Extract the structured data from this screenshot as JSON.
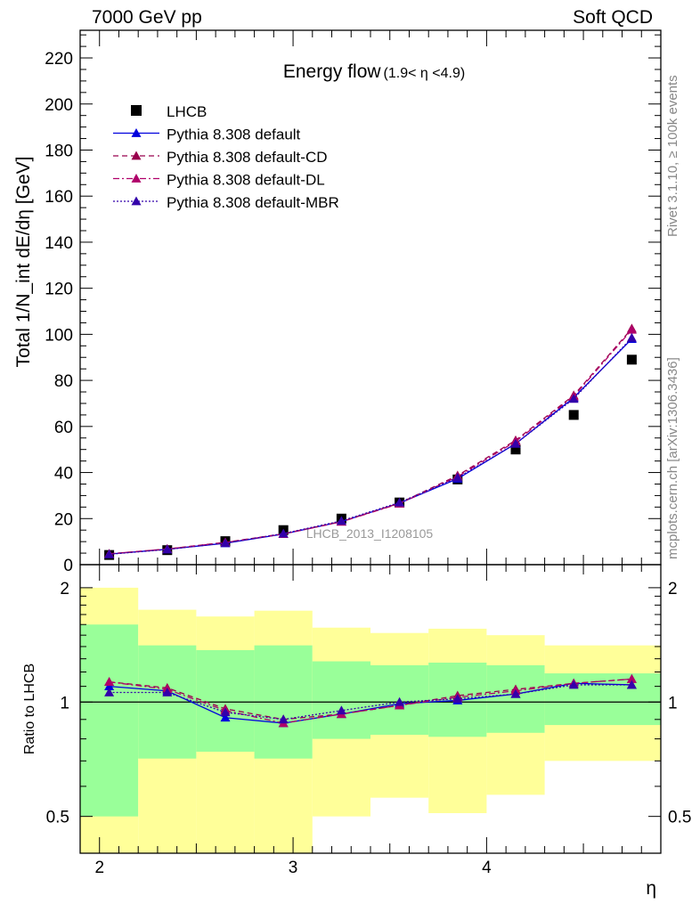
{
  "header": {
    "left": "7000 GeV pp",
    "right": "Soft QCD"
  },
  "side_labels": {
    "rivet": "Rivet 3.1.10, ≥ 100k events",
    "mcplots": "mcplots.cern.ch [arXiv:1306.3436]"
  },
  "chart_data": [
    {
      "type": "scatter",
      "title": "Energy flow",
      "title_suffix": "(1.9< η <4.9)",
      "ylabel": "Total 1/N_int dE/dη [GeV]",
      "xlabel": "η",
      "xlim": [
        1.9,
        4.9
      ],
      "ylim": [
        0,
        232
      ],
      "yticks": [
        0,
        20,
        40,
        60,
        80,
        100,
        120,
        140,
        160,
        180,
        200,
        220
      ],
      "watermark": "LHCB_2013_I1208105",
      "legend_position": "top-left",
      "x": [
        2.05,
        2.35,
        2.65,
        2.95,
        3.25,
        3.55,
        3.85,
        4.15,
        4.45,
        4.75
      ],
      "series": [
        {
          "name": "LHCB",
          "marker": "square",
          "color": "#000000",
          "values": [
            4.2,
            6.3,
            10.2,
            15.0,
            20.0,
            27.0,
            37.0,
            50.0,
            65.0,
            89.0
          ]
        },
        {
          "name": "Pythia 8.308 default",
          "marker": "triangle",
          "line": "solid",
          "color": "#0000dd",
          "values": [
            4.6,
            6.7,
            9.3,
            13.3,
            18.7,
            26.7,
            37.3,
            52.5,
            72.5,
            98.0
          ]
        },
        {
          "name": "Pythia 8.308 default-CD",
          "marker": "triangle",
          "line": "dashed",
          "color": "#99004d",
          "values": [
            4.7,
            6.8,
            9.7,
            13.4,
            18.7,
            26.7,
            38.7,
            54.0,
            73.5,
            102.5
          ]
        },
        {
          "name": "Pythia 8.308 default-DL",
          "marker": "triangle",
          "line": "dashdot",
          "color": "#b0006a",
          "values": [
            4.7,
            6.8,
            9.6,
            13.3,
            18.6,
            26.5,
            38.2,
            53.5,
            73.0,
            102.0
          ]
        },
        {
          "name": "Pythia 8.308 default-MBR",
          "marker": "triangle",
          "line": "dotted",
          "color": "#3300aa",
          "values": [
            4.5,
            6.6,
            9.4,
            13.5,
            19.0,
            27.0,
            37.8,
            52.5,
            72.0,
            98.5
          ]
        }
      ]
    },
    {
      "type": "scatter",
      "ylabel": "Ratio to LHCB",
      "xlabel": "η",
      "xlim": [
        1.9,
        4.9
      ],
      "ylim": [
        0.4,
        2.3
      ],
      "yscale": "log",
      "yticks": [
        0.5,
        1,
        2
      ],
      "xticks": [
        2,
        3,
        4
      ],
      "reference_line": 1,
      "bands": [
        {
          "x_low": 1.9,
          "x_high": 2.2,
          "inner": [
            0.5,
            1.6
          ],
          "outer": [
            0.3,
            2.0
          ]
        },
        {
          "x_low": 2.2,
          "x_high": 2.5,
          "inner": [
            0.71,
            1.41
          ],
          "outer": [
            0.3,
            1.75
          ]
        },
        {
          "x_low": 2.5,
          "x_high": 2.8,
          "inner": [
            0.74,
            1.37
          ],
          "outer": [
            0.3,
            1.68
          ]
        },
        {
          "x_low": 2.8,
          "x_high": 3.1,
          "inner": [
            0.71,
            1.41
          ],
          "outer": [
            0.3,
            1.74
          ]
        },
        {
          "x_low": 3.1,
          "x_high": 3.4,
          "inner": [
            0.8,
            1.28
          ],
          "outer": [
            0.5,
            1.57
          ]
        },
        {
          "x_low": 3.4,
          "x_high": 3.7,
          "inner": [
            0.82,
            1.25
          ],
          "outer": [
            0.56,
            1.52
          ]
        },
        {
          "x_low": 3.7,
          "x_high": 4.0,
          "inner": [
            0.81,
            1.27
          ],
          "outer": [
            0.51,
            1.56
          ]
        },
        {
          "x_low": 4.0,
          "x_high": 4.3,
          "inner": [
            0.83,
            1.25
          ],
          "outer": [
            0.57,
            1.5
          ]
        },
        {
          "x_low": 4.3,
          "x_high": 4.9,
          "inner": [
            0.87,
            1.19
          ],
          "outer": [
            0.7,
            1.41
          ]
        }
      ],
      "band_colors": {
        "inner": "#99ff99",
        "outer": "#ffff99"
      },
      "x": [
        2.05,
        2.35,
        2.65,
        2.95,
        3.25,
        3.55,
        3.85,
        4.15,
        4.45,
        4.75
      ],
      "series": [
        {
          "name": "Pythia 8.308 default",
          "line": "solid",
          "color": "#0000dd",
          "values": [
            1.1,
            1.07,
            0.91,
            0.88,
            0.93,
            0.99,
            1.01,
            1.05,
            1.12,
            1.11
          ]
        },
        {
          "name": "Pythia 8.308 default-CD",
          "line": "dashed",
          "color": "#99004d",
          "values": [
            1.13,
            1.09,
            0.96,
            0.9,
            0.93,
            0.98,
            1.04,
            1.08,
            1.12,
            1.15
          ]
        },
        {
          "name": "Pythia 8.308 default-DL",
          "line": "dashdot",
          "color": "#b0006a",
          "values": [
            1.13,
            1.08,
            0.95,
            0.88,
            0.93,
            0.98,
            1.03,
            1.07,
            1.12,
            1.15
          ]
        },
        {
          "name": "Pythia 8.308 default-MBR",
          "line": "dotted",
          "color": "#3300aa",
          "values": [
            1.06,
            1.06,
            0.94,
            0.9,
            0.95,
            1.0,
            1.02,
            1.05,
            1.11,
            1.11
          ]
        }
      ]
    }
  ]
}
